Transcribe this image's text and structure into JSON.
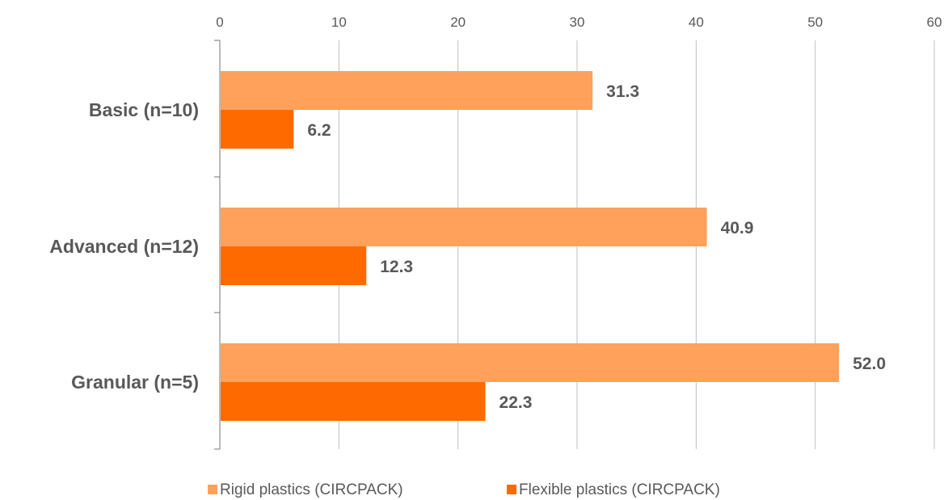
{
  "chart_data": {
    "type": "bar",
    "orientation": "horizontal",
    "title": "",
    "xlabel": "",
    "ylabel": "",
    "categories": [
      "Basic (n=10)",
      "Advanced (n=12)",
      "Granular (n=5)"
    ],
    "series": [
      {
        "name": "Rigid plastics (CIRCPACK)",
        "values": [
          31.3,
          40.9,
          52.0
        ],
        "labels": [
          "31.3",
          "40.9",
          "52.0"
        ],
        "color": "#FFA15A"
      },
      {
        "name": "Flexible plastics (CIRCPACK)",
        "values": [
          6.2,
          12.3,
          22.3
        ],
        "labels": [
          "6.2",
          "12.3",
          "22.3"
        ],
        "color": "#FF6A00"
      }
    ],
    "xlim": [
      0,
      60
    ],
    "x_ticks": [
      0,
      10,
      20,
      30,
      40,
      50,
      60
    ],
    "x_tick_labels": [
      "0",
      "10",
      "20",
      "30",
      "40",
      "50",
      "60"
    ],
    "x_axis_position": "top",
    "grid": true,
    "gridline_color": "#BFBFBF",
    "text_color": "#595959",
    "legend": "bottom"
  }
}
